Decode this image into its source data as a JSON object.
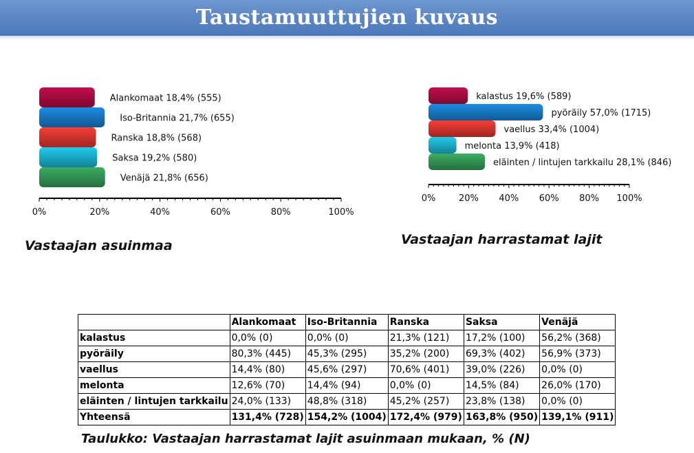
{
  "page": {
    "title": "Taustamuuttujien kuvaus"
  },
  "colors": {
    "header": "#4f7ec0",
    "title_text": "#ffffff"
  },
  "chart_data": [
    {
      "type": "bar",
      "orientation": "horizontal",
      "caption": "Vastaajan asuinmaa",
      "categories": [
        "Alankomaat",
        "Iso-Britannia",
        "Ranska",
        "Saksa",
        "Venäjä"
      ],
      "values": [
        18.4,
        21.7,
        18.8,
        19.2,
        21.8
      ],
      "counts": [
        555,
        655,
        568,
        580,
        656
      ],
      "labels": [
        "Alankomaat 18,4% (555)",
        "Iso-Britannia 21,7% (655)",
        "Ranska 18,8% (568)",
        "Saksa 19,2% (580)",
        "Venäjä 21,8% (656)"
      ],
      "colors": [
        "#9b0b3b",
        "#1670b6",
        "#c7312b",
        "#1aa3bd",
        "#2f8a4f"
      ],
      "xlim": [
        0,
        100
      ],
      "xticks": [
        "0%",
        "20%",
        "40%",
        "60%",
        "80%",
        "100%"
      ]
    },
    {
      "type": "bar",
      "orientation": "horizontal",
      "caption": "Vastaajan harrastamat lajit",
      "categories": [
        "kalastus",
        "pyöräily",
        "vaellus",
        "melonta",
        "eläinten / lintujen tarkkailu"
      ],
      "values": [
        19.6,
        57.0,
        33.4,
        13.9,
        28.1
      ],
      "counts": [
        589,
        1715,
        1004,
        418,
        846
      ],
      "labels": [
        "kalastus 19,6% (589)",
        "pyöräily 57,0% (1715)",
        "vaellus 33,4% (1004)",
        "melonta 13,9% (418)",
        "eläinten / lintujen tarkkailu 28,1% (846)"
      ],
      "colors": [
        "#9b0b3b",
        "#1670b6",
        "#c7312b",
        "#1aa3bd",
        "#2f8a4f"
      ],
      "xlim": [
        0,
        100
      ],
      "xticks": [
        "0%",
        "20%",
        "40%",
        "60%",
        "80%",
        "100%"
      ]
    },
    {
      "type": "table",
      "caption": "Taulukko: Vastaajan harrastamat lajit asuinmaan mukaan, % (N)",
      "columns": [
        "",
        "Alankomaat",
        "Iso-Britannia",
        "Ranska",
        "Saksa",
        "Venäjä"
      ],
      "rows": [
        [
          "kalastus",
          "0,0% (0)",
          "0,0% (0)",
          "21,3% (121)",
          "17,2% (100)",
          "56,2% (368)"
        ],
        [
          "pyöräily",
          "80,3% (445)",
          "45,3% (295)",
          "35,2% (200)",
          "69,3% (402)",
          "56,9% (373)"
        ],
        [
          "vaellus",
          "14,4% (80)",
          "45,6% (297)",
          "70,6% (401)",
          "39,0% (226)",
          "0,0% (0)"
        ],
        [
          "melonta",
          "12,6% (70)",
          "14,4% (94)",
          "0,0% (0)",
          "14,5% (84)",
          "26,0% (170)"
        ],
        [
          "eläinten / lintujen tarkkailu",
          "24,0% (133)",
          "48,8% (318)",
          "45,2% (257)",
          "23,8% (138)",
          "0,0% (0)"
        ],
        [
          "Yhteensä",
          "131,4% (728)",
          "154,2% (1004)",
          "172,4% (979)",
          "163,8% (950)",
          "139,1% (911)"
        ]
      ]
    }
  ]
}
